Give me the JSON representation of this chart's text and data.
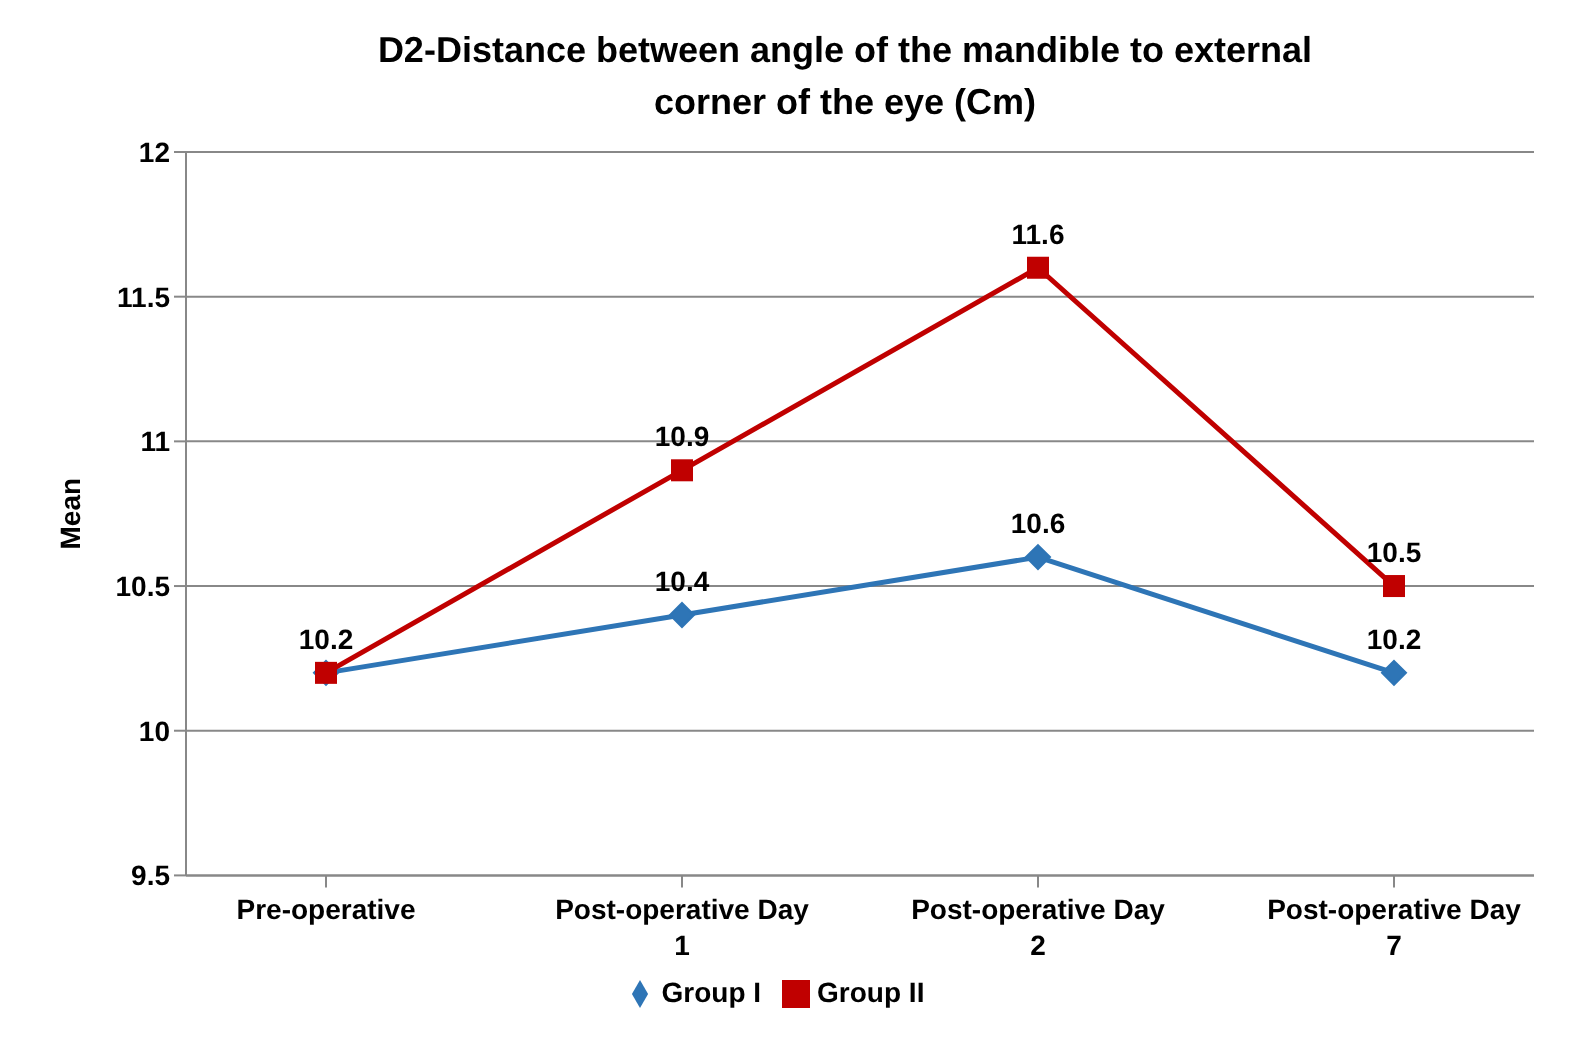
{
  "chart_data": {
    "type": "line",
    "title": "D2-Distance between angle of the mandible to external corner of the eye (Cm)",
    "ylabel": "Mean",
    "categories": [
      "Pre-operative",
      "Post-operative Day 1",
      "Post-operative Day 2",
      "Post-operative Day 7"
    ],
    "series": [
      {
        "name": "Group I",
        "color": "#2e75b6",
        "marker": "diamond",
        "values": [
          10.2,
          10.4,
          10.6,
          10.2
        ],
        "value_labels": [
          "10.2",
          "10.4",
          "10.6",
          "10.2"
        ]
      },
      {
        "name": "Group II",
        "color": "#c00000",
        "marker": "square",
        "values": [
          10.2,
          10.9,
          11.6,
          10.5
        ],
        "value_labels": [
          null,
          "10.9",
          "11.6",
          "10.5"
        ]
      }
    ],
    "ylim": [
      9.5,
      12
    ],
    "yticks": [
      9.5,
      10,
      10.5,
      11,
      11.5,
      12
    ],
    "grid": "y",
    "legend": "bottom"
  }
}
